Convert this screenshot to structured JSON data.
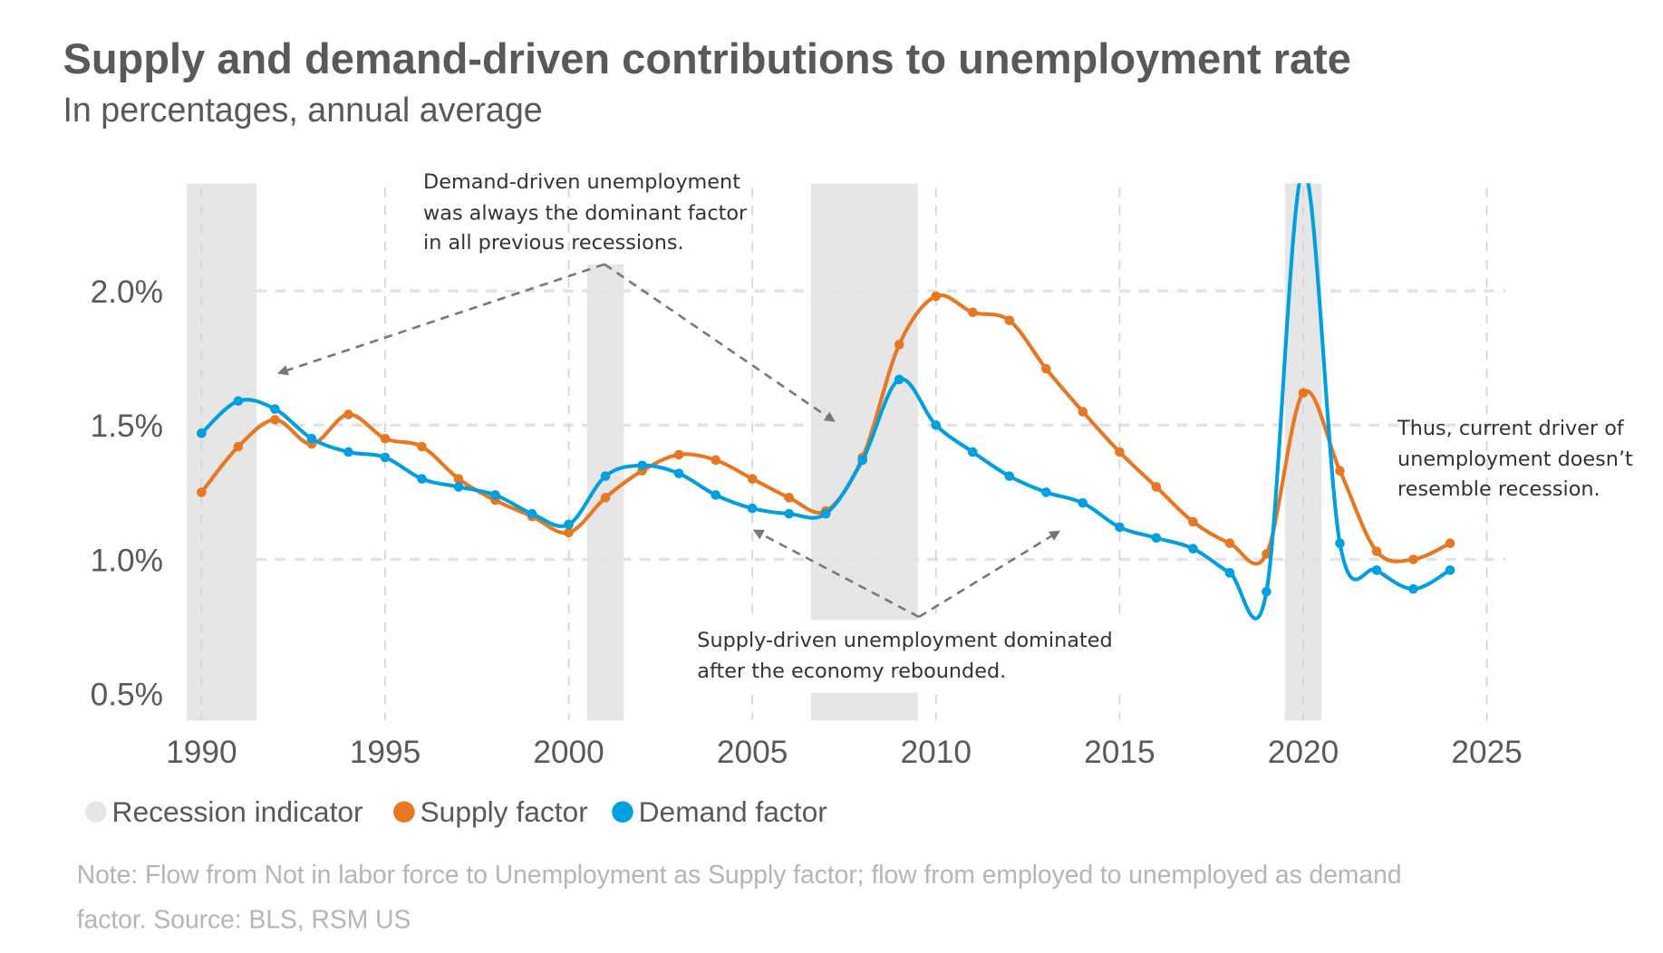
{
  "chart_data": {
    "type": "line",
    "title": "Supply and demand-driven contributions to unemployment rate",
    "subtitle": "In percentages, annual average",
    "xlabel": "",
    "ylabel": "",
    "xlim": [
      1989.6,
      2025.5
    ],
    "ylim": [
      0.4,
      2.4
    ],
    "x_ticks": [
      1990,
      1995,
      2000,
      2005,
      2010,
      2015,
      2020,
      2025
    ],
    "x_tick_labels": [
      "1990",
      "1995",
      "2000",
      "2005",
      "2010",
      "2015",
      "2020",
      "2025"
    ],
    "y_ticks": [
      0.5,
      1.0,
      1.5,
      2.0
    ],
    "y_tick_labels": [
      "0.5%",
      "1.0%",
      "1.5%",
      "2.0%"
    ],
    "grid": true,
    "legend_placement": "bottom-left",
    "x": [
      1990,
      1991,
      1992,
      1993,
      1994,
      1995,
      1996,
      1997,
      1998,
      1999,
      2000,
      2001,
      2002,
      2003,
      2004,
      2005,
      2006,
      2007,
      2008,
      2009,
      2010,
      2011,
      2012,
      2013,
      2014,
      2015,
      2016,
      2017,
      2018,
      2019,
      2020,
      2021,
      2022,
      2023,
      2024
    ],
    "series": [
      {
        "name": "Supply factor",
        "color": "#E87722",
        "values": [
          1.25,
          1.42,
          1.52,
          1.43,
          1.54,
          1.45,
          1.42,
          1.3,
          1.22,
          1.16,
          1.1,
          1.23,
          1.33,
          1.39,
          1.37,
          1.3,
          1.23,
          1.18,
          1.38,
          1.8,
          1.98,
          1.92,
          1.89,
          1.71,
          1.55,
          1.4,
          1.27,
          1.14,
          1.06,
          1.02,
          1.62,
          1.33,
          1.03,
          1.0,
          1.06
        ]
      },
      {
        "name": "Demand factor",
        "color": "#009FDF",
        "values": [
          1.47,
          1.59,
          1.56,
          1.45,
          1.4,
          1.38,
          1.3,
          1.27,
          1.24,
          1.17,
          1.13,
          1.31,
          1.35,
          1.32,
          1.24,
          1.19,
          1.17,
          1.17,
          1.37,
          1.67,
          1.5,
          1.4,
          1.31,
          1.25,
          1.21,
          1.12,
          1.08,
          1.04,
          0.95,
          0.88,
          2.45,
          1.06,
          0.96,
          0.89,
          0.96
        ]
      }
    ],
    "recessions": {
      "name": "Recession indicator",
      "color": "#E6E6E6",
      "periods": [
        [
          1989.6,
          1991.5
        ],
        [
          2000.5,
          2001.5
        ],
        [
          2006.6,
          2009.5
        ],
        [
          2019.5,
          2020.5
        ]
      ]
    },
    "annotations": [
      {
        "lines": [
          "Demand-driven unemployment",
          "was always the dominant factor",
          "in all previous recessions."
        ]
      },
      {
        "lines": [
          "Supply-driven unemployment dominated",
          "after the economy rebounded."
        ]
      },
      {
        "lines": [
          "Thus, current driver of",
          "unemployment doesn’t",
          "resemble recession."
        ]
      }
    ],
    "legend": [
      "Recession indicator",
      "Supply factor",
      "Demand factor"
    ],
    "note": [
      "Note: Flow from Not in labor force to Unemployment as Supply factor; flow from employed to unemployed as demand",
      "factor. Source: BLS, RSM US"
    ]
  }
}
